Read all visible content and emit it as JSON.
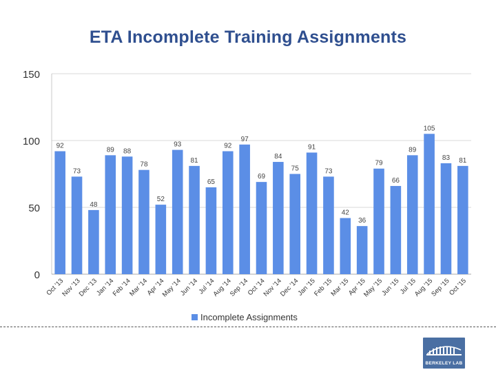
{
  "slide": {
    "title": "ETA Incomplete Training Assignments"
  },
  "logo": {
    "text": "BERKELEY LAB"
  },
  "chart_data": {
    "type": "bar",
    "title": "ETA Incomplete Training Assignments",
    "xlabel": "",
    "ylabel": "",
    "ylim": [
      0,
      150
    ],
    "yticks": [
      0,
      50,
      100,
      150
    ],
    "grid": true,
    "legend_position": "bottom",
    "categories": [
      "Oct '13",
      "Nov '13",
      "Dec '13",
      "Jan '14",
      "Feb '14",
      "Mar '14",
      "Apr '14",
      "May '14",
      "Jun '14",
      "Jul '14",
      "Aug '14",
      "Sep '14",
      "Oct '14",
      "Nov '14",
      "Dec '14",
      "Jan '15",
      "Feb '15",
      "Mar '15",
      "Apr '15",
      "May '15",
      "Jun '15",
      "Jul '15",
      "Aug '15",
      "Sep '15",
      "Oct '15"
    ],
    "series": [
      {
        "name": "Incomplete Assignments",
        "color": "#5b8ee6",
        "values": [
          92,
          73,
          48,
          89,
          88,
          78,
          52,
          93,
          81,
          65,
          92,
          97,
          69,
          84,
          75,
          91,
          73,
          42,
          36,
          79,
          66,
          89,
          105,
          83,
          81
        ]
      }
    ]
  }
}
